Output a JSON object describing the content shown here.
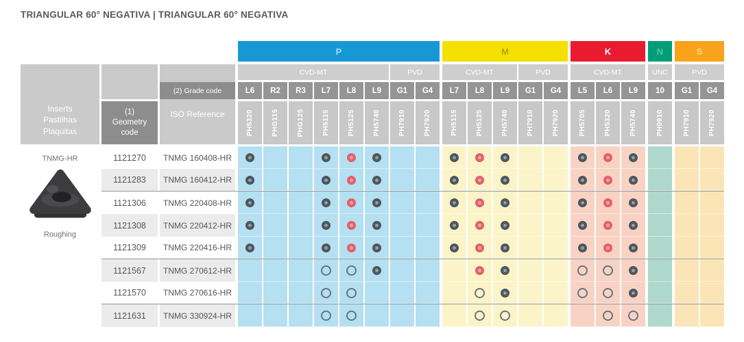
{
  "title": "TRIANGULAR 60° NEGATIVA | TRIANGULAR 60° NEGATIVA",
  "left_header": {
    "inserts_label": "Inserts\nPastilhas\nPlaquitas",
    "geometry_label": "(1)\nGeometry\ncode",
    "grade_code_label": "(2) Grade code",
    "iso_label": "ISO Reference"
  },
  "insert_info": {
    "name": "TNMG-HR",
    "type": "Roughing"
  },
  "icons": {
    "D": "filled-insert-icon",
    "R": "filled-insert-red-icon",
    "O": "open-ring-icon"
  },
  "sections": [
    {
      "id": "P",
      "label": "P",
      "colors": {
        "band": "#1798d5",
        "band_text": "#a5ddf5",
        "cell": "#b4e0f1"
      },
      "processes": [
        {
          "label": "CVD-MT",
          "span": 6
        },
        {
          "label": "PVD",
          "span": 2
        }
      ],
      "columns": [
        {
          "grade": "L6",
          "ref": "PH5320"
        },
        {
          "grade": "R2",
          "ref": "PHG115"
        },
        {
          "grade": "R3",
          "ref": "PHG125"
        },
        {
          "grade": "L7",
          "ref": "PH5115"
        },
        {
          "grade": "L8",
          "ref": "PH5125"
        },
        {
          "grade": "L9",
          "ref": "PH5740"
        },
        {
          "grade": "G1",
          "ref": "PH7910"
        },
        {
          "grade": "G4",
          "ref": "PH7920"
        }
      ]
    },
    {
      "id": "M",
      "label": "M",
      "colors": {
        "band": "#f5e000",
        "band_text": "#b5a400",
        "cell": "#faf4c8"
      },
      "processes": [
        {
          "label": "CVD-MT",
          "span": 3
        },
        {
          "label": "PVD",
          "span": 2
        }
      ],
      "columns": [
        {
          "grade": "L7",
          "ref": "PH5115"
        },
        {
          "grade": "L8",
          "ref": "PH5125"
        },
        {
          "grade": "L9",
          "ref": "PH5740"
        },
        {
          "grade": "G1",
          "ref": "PH7910"
        },
        {
          "grade": "G4",
          "ref": "PH7920"
        }
      ]
    },
    {
      "id": "K",
      "label": "K",
      "colors": {
        "band": "#e81c2e",
        "band_text": "#ffffff",
        "cell": "#f8d3c4"
      },
      "processes": [
        {
          "label": "CVD-MT",
          "span": 3
        }
      ],
      "columns": [
        {
          "grade": "L5",
          "ref": "PH5705"
        },
        {
          "grade": "L6",
          "ref": "PH5320"
        },
        {
          "grade": "L9",
          "ref": "PH5740"
        }
      ]
    },
    {
      "id": "N",
      "label": "N",
      "colors": {
        "band": "#009e78",
        "band_text": "#54c0a6",
        "cell": "#aed9cc"
      },
      "processes": [
        {
          "label": "UNC",
          "span": 1
        }
      ],
      "columns": [
        {
          "grade": "10",
          "ref": "PH0910"
        }
      ]
    },
    {
      "id": "S",
      "label": "S",
      "colors": {
        "band": "#f9a21c",
        "band_text": "#fde07e",
        "cell": "#fbe5b6"
      },
      "processes": [
        {
          "label": "PVD",
          "span": 2
        }
      ],
      "columns": [
        {
          "grade": "G1",
          "ref": "PH7910"
        },
        {
          "grade": "G4",
          "ref": "PH7920"
        }
      ]
    }
  ],
  "rows": [
    {
      "code": "1121270",
      "iso": "TNMG 160408-HR",
      "group_end": false,
      "marks": {
        "P": [
          "D",
          "",
          "",
          "D",
          "R",
          "D",
          "",
          ""
        ],
        "M": [
          "D",
          "R",
          "D",
          "",
          ""
        ],
        "K": [
          "D",
          "R",
          "D"
        ],
        "N": [
          ""
        ],
        "S": [
          "",
          ""
        ]
      }
    },
    {
      "code": "1121283",
      "iso": "TNMG 160412-HR",
      "group_end": true,
      "marks": {
        "P": [
          "D",
          "",
          "",
          "D",
          "R",
          "D",
          "",
          ""
        ],
        "M": [
          "D",
          "R",
          "D",
          "",
          ""
        ],
        "K": [
          "D",
          "R",
          "D"
        ],
        "N": [
          ""
        ],
        "S": [
          "",
          ""
        ]
      }
    },
    {
      "code": "1121306",
      "iso": "TNMG 220408-HR",
      "group_end": false,
      "marks": {
        "P": [
          "D",
          "",
          "",
          "D",
          "R",
          "D",
          "",
          ""
        ],
        "M": [
          "D",
          "R",
          "D",
          "",
          ""
        ],
        "K": [
          "D",
          "R",
          "D"
        ],
        "N": [
          ""
        ],
        "S": [
          "",
          ""
        ]
      }
    },
    {
      "code": "1121308",
      "iso": "TNMG 220412-HR",
      "group_end": false,
      "marks": {
        "P": [
          "D",
          "",
          "",
          "D",
          "R",
          "D",
          "",
          ""
        ],
        "M": [
          "D",
          "R",
          "D",
          "",
          ""
        ],
        "K": [
          "D",
          "R",
          "D"
        ],
        "N": [
          ""
        ],
        "S": [
          "",
          ""
        ]
      }
    },
    {
      "code": "1121309",
      "iso": "TNMG 220416-HR",
      "group_end": true,
      "marks": {
        "P": [
          "D",
          "",
          "",
          "D",
          "R",
          "D",
          "",
          ""
        ],
        "M": [
          "D",
          "R",
          "D",
          "",
          ""
        ],
        "K": [
          "D",
          "R",
          "D"
        ],
        "N": [
          ""
        ],
        "S": [
          "",
          ""
        ]
      }
    },
    {
      "code": "1121567",
      "iso": "TNMG 270612-HR",
      "group_end": false,
      "marks": {
        "P": [
          "",
          "",
          "",
          "O",
          "O",
          "D",
          "",
          ""
        ],
        "M": [
          "",
          "R",
          "D",
          "",
          ""
        ],
        "K": [
          "O",
          "O",
          "D"
        ],
        "N": [
          ""
        ],
        "S": [
          "",
          ""
        ]
      }
    },
    {
      "code": "1121570",
      "iso": "TNMG 270616-HR",
      "group_end": true,
      "marks": {
        "P": [
          "",
          "",
          "",
          "O",
          "O",
          "",
          "",
          ""
        ],
        "M": [
          "",
          "O",
          "D",
          "",
          ""
        ],
        "K": [
          "O",
          "O",
          "D"
        ],
        "N": [
          ""
        ],
        "S": [
          "",
          ""
        ]
      }
    },
    {
      "code": "1121631",
      "iso": "TNMG 330924-HR",
      "group_end": false,
      "marks": {
        "P": [
          "",
          "",
          "",
          "O",
          "O",
          "",
          "",
          ""
        ],
        "M": [
          "",
          "O",
          "O",
          "",
          ""
        ],
        "K": [
          "",
          "O",
          "O"
        ],
        "N": [
          ""
        ],
        "S": [
          "",
          ""
        ]
      }
    }
  ]
}
